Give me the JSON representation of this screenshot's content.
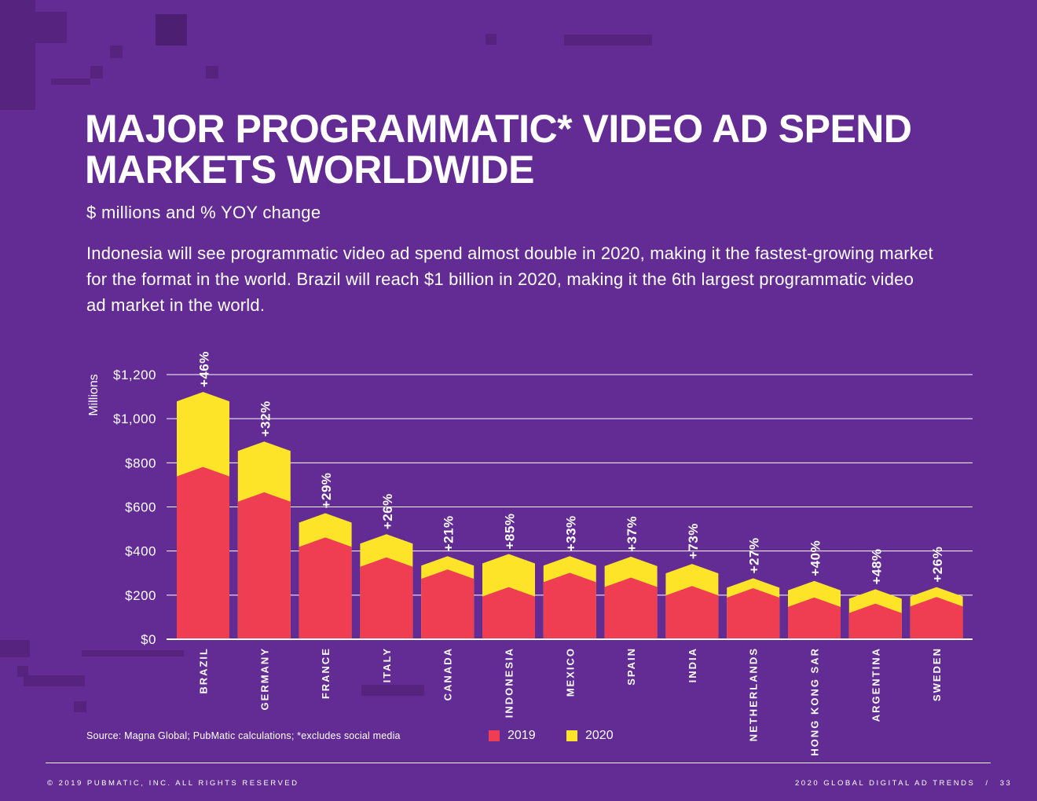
{
  "title_lines": [
    "MAJOR PROGRAMMATIC* VIDEO AD SPEND",
    "MARKETS WORLDWIDE"
  ],
  "subtitle": "$ millions and % YOY change",
  "description": "Indonesia will see programmatic video ad spend almost double in 2020, making it the fastest-growing market for the format in the world. Brazil will reach $1 billion in 2020, making it the 6th largest programmatic video ad market in the world.",
  "colors": {
    "background": "#632c94",
    "s2019": "#ef3e52",
    "s2020": "#fde429"
  },
  "chart_data": {
    "type": "bar",
    "stacked": true,
    "title": "MAJOR PROGRAMMATIC* VIDEO AD SPEND MARKETS WORLDWIDE",
    "ylabel": "Millions",
    "ylim": [
      0,
      1200
    ],
    "yticks": [
      0,
      200,
      400,
      600,
      800,
      1000,
      1200
    ],
    "ytick_labels": [
      "$0",
      "$200",
      "$400",
      "$600",
      "$800",
      "$1,000",
      "$1,200"
    ],
    "categories": [
      "BRAZIL",
      "GERMANY",
      "FRANCE",
      "ITALY",
      "CANADA",
      "INDONESIA",
      "MEXICO",
      "SPAIN",
      "INDIA",
      "NETHERLANDS",
      "HONG KONG SAR",
      "ARGENTINA",
      "SWEDEN"
    ],
    "series": [
      {
        "name": "2019",
        "values": [
          760,
          645,
          440,
          350,
          295,
          215,
          280,
          258,
          220,
          210,
          168,
          140,
          170
        ]
      },
      {
        "name": "2020",
        "values": [
          340,
          230,
          110,
          105,
          60,
          150,
          75,
          95,
          100,
          45,
          75,
          65,
          45
        ]
      }
    ],
    "annotations": [
      "+46%",
      "+32%",
      "+29%",
      "+26%",
      "+21%",
      "+85%",
      "+33%",
      "+37%",
      "+73%",
      "+27%",
      "+40%",
      "+48%",
      "+26%"
    ],
    "grid": true,
    "legend": "bottom"
  },
  "source": "Source: Magna Global; PubMatic calculations; *excludes social media",
  "footer_left": "© 2019 PUBMATIC, INC. ALL RIGHTS RESERVED",
  "footer_right": "2020 GLOBAL DIGITAL AD TRENDS",
  "footer_sep": "/",
  "page_number": "33"
}
